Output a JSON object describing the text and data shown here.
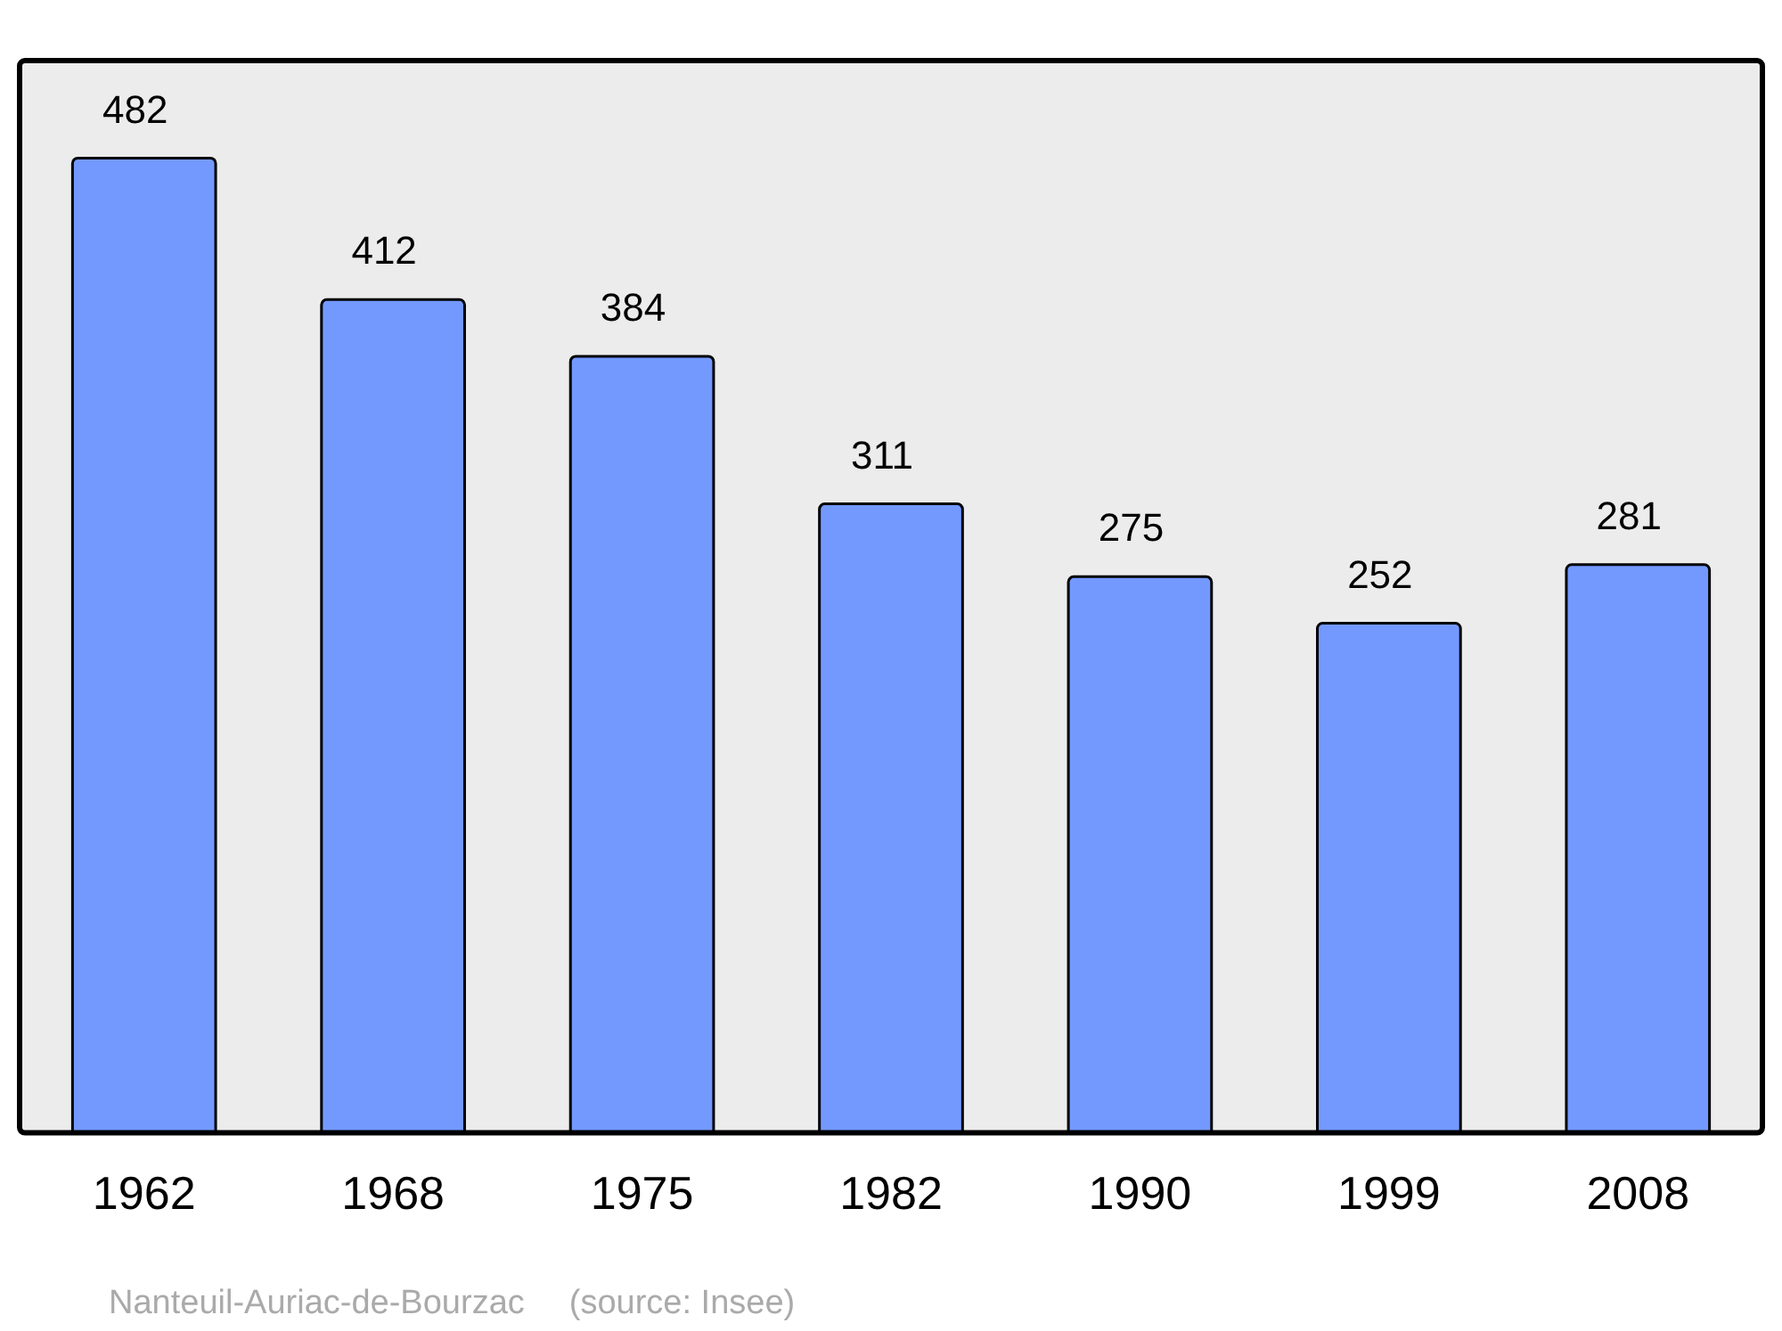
{
  "chart_data": {
    "type": "bar",
    "categories": [
      "1962",
      "1968",
      "1975",
      "1982",
      "1990",
      "1999",
      "2008"
    ],
    "values": [
      482,
      412,
      384,
      311,
      275,
      252,
      281
    ],
    "color": "#7399ff",
    "data_labels": true,
    "grid": false,
    "legend": false,
    "annotations": [
      "Nanteuil-Auriac-de-Bourzac",
      "(source: Insee)"
    ]
  }
}
